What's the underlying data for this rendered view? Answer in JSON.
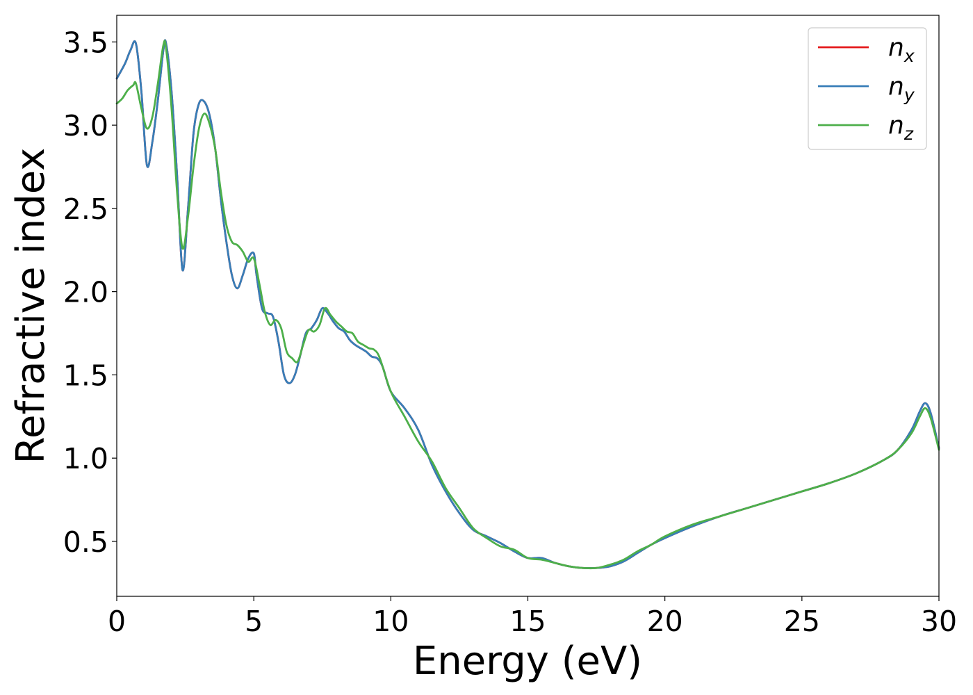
{
  "chart_data": {
    "type": "line",
    "xlabel": "Energy (eV)",
    "ylabel": "Refractive index",
    "xlim": [
      0,
      30
    ],
    "ylim": [
      0.17,
      3.66
    ],
    "xticks": [
      0,
      5,
      10,
      15,
      20,
      25,
      30
    ],
    "xtick_labels": [
      "0",
      "5",
      "10",
      "15",
      "20",
      "25",
      "30"
    ],
    "yticks": [
      0.5,
      1.0,
      1.5,
      2.0,
      2.5,
      3.0,
      3.5
    ],
    "ytick_labels": [
      "0.5",
      "1.0",
      "1.5",
      "2.0",
      "2.5",
      "3.0",
      "3.5"
    ],
    "grid": false,
    "legend_position": "top-right",
    "series": [
      {
        "name": "n",
        "subscript": "x",
        "color": "#e41a1c",
        "x": [
          0,
          0.3,
          0.5,
          0.7,
          0.9,
          1.1,
          1.3,
          1.5,
          1.7,
          1.8,
          2.0,
          2.2,
          2.4,
          2.6,
          2.8,
          3.0,
          3.2,
          3.4,
          3.6,
          3.8,
          4.0,
          4.2,
          4.4,
          4.6,
          4.8,
          5.0,
          5.1,
          5.3,
          5.5,
          5.7,
          5.9,
          6.1,
          6.3,
          6.5,
          6.7,
          6.9,
          7.1,
          7.3,
          7.5,
          7.7,
          7.9,
          8.1,
          8.3,
          8.5,
          8.7,
          8.9,
          9.1,
          9.3,
          9.5,
          9.7,
          10.0,
          10.5,
          11.0,
          11.5,
          12.0,
          12.5,
          13.0,
          13.5,
          14.0,
          14.5,
          15.0,
          15.5,
          16.0,
          16.5,
          17.0,
          17.5,
          18.0,
          18.5,
          19.0,
          19.5,
          20.0,
          21.0,
          22.0,
          23.0,
          24.0,
          25.0,
          26.0,
          27.0,
          28.0,
          28.5,
          29.0,
          29.3,
          29.5,
          29.7,
          30.0
        ],
        "y": [
          3.28,
          3.37,
          3.45,
          3.49,
          3.2,
          2.76,
          2.9,
          3.15,
          3.45,
          3.49,
          3.2,
          2.7,
          2.13,
          2.5,
          2.95,
          3.13,
          3.14,
          3.05,
          2.85,
          2.55,
          2.3,
          2.1,
          2.02,
          2.1,
          2.2,
          2.23,
          2.1,
          1.9,
          1.87,
          1.85,
          1.7,
          1.5,
          1.45,
          1.5,
          1.62,
          1.75,
          1.78,
          1.83,
          1.9,
          1.87,
          1.82,
          1.78,
          1.76,
          1.71,
          1.68,
          1.66,
          1.64,
          1.61,
          1.6,
          1.55,
          1.4,
          1.3,
          1.17,
          0.96,
          0.8,
          0.67,
          0.57,
          0.53,
          0.49,
          0.44,
          0.4,
          0.4,
          0.37,
          0.35,
          0.34,
          0.34,
          0.35,
          0.38,
          0.43,
          0.48,
          0.52,
          0.59,
          0.65,
          0.7,
          0.75,
          0.8,
          0.85,
          0.91,
          0.99,
          1.05,
          1.17,
          1.28,
          1.33,
          1.27,
          1.06
        ]
      },
      {
        "name": "n",
        "subscript": "y",
        "color": "#377eb8",
        "x": [
          0,
          0.3,
          0.5,
          0.7,
          0.9,
          1.1,
          1.3,
          1.5,
          1.7,
          1.8,
          2.0,
          2.2,
          2.4,
          2.6,
          2.8,
          3.0,
          3.2,
          3.4,
          3.6,
          3.8,
          4.0,
          4.2,
          4.4,
          4.6,
          4.8,
          5.0,
          5.1,
          5.3,
          5.5,
          5.7,
          5.9,
          6.1,
          6.3,
          6.5,
          6.7,
          6.9,
          7.1,
          7.3,
          7.5,
          7.7,
          7.9,
          8.1,
          8.3,
          8.5,
          8.7,
          8.9,
          9.1,
          9.3,
          9.5,
          9.7,
          10.0,
          10.5,
          11.0,
          11.5,
          12.0,
          12.5,
          13.0,
          13.5,
          14.0,
          14.5,
          15.0,
          15.5,
          16.0,
          16.5,
          17.0,
          17.5,
          18.0,
          18.5,
          19.0,
          19.5,
          20.0,
          21.0,
          22.0,
          23.0,
          24.0,
          25.0,
          26.0,
          27.0,
          28.0,
          28.5,
          29.0,
          29.3,
          29.5,
          29.7,
          30.0
        ],
        "y": [
          3.28,
          3.37,
          3.45,
          3.49,
          3.2,
          2.76,
          2.9,
          3.15,
          3.45,
          3.49,
          3.2,
          2.7,
          2.13,
          2.5,
          2.95,
          3.13,
          3.14,
          3.05,
          2.85,
          2.55,
          2.3,
          2.1,
          2.02,
          2.1,
          2.2,
          2.23,
          2.1,
          1.9,
          1.87,
          1.85,
          1.7,
          1.5,
          1.45,
          1.5,
          1.62,
          1.75,
          1.78,
          1.83,
          1.9,
          1.87,
          1.82,
          1.78,
          1.76,
          1.71,
          1.68,
          1.66,
          1.64,
          1.61,
          1.6,
          1.55,
          1.4,
          1.3,
          1.17,
          0.96,
          0.8,
          0.67,
          0.57,
          0.53,
          0.49,
          0.44,
          0.4,
          0.4,
          0.37,
          0.35,
          0.34,
          0.34,
          0.35,
          0.38,
          0.43,
          0.48,
          0.52,
          0.59,
          0.65,
          0.7,
          0.75,
          0.8,
          0.85,
          0.91,
          0.99,
          1.05,
          1.17,
          1.28,
          1.33,
          1.27,
          1.06
        ]
      },
      {
        "name": "n",
        "subscript": "z",
        "color": "#4daf4a",
        "x": [
          0,
          0.2,
          0.4,
          0.6,
          0.7,
          0.9,
          1.1,
          1.3,
          1.5,
          1.7,
          1.8,
          2.0,
          2.2,
          2.4,
          2.6,
          2.8,
          3.0,
          3.2,
          3.4,
          3.6,
          3.8,
          4.0,
          4.2,
          4.4,
          4.6,
          4.8,
          5.0,
          5.2,
          5.4,
          5.6,
          5.8,
          6.0,
          6.2,
          6.4,
          6.6,
          6.8,
          7.0,
          7.2,
          7.4,
          7.6,
          7.8,
          8.0,
          8.2,
          8.4,
          8.6,
          8.8,
          9.0,
          9.2,
          9.4,
          9.6,
          10.0,
          10.5,
          11.0,
          11.5,
          12.0,
          12.5,
          13.0,
          13.5,
          14.0,
          14.5,
          15.0,
          15.5,
          16.0,
          16.5,
          17.0,
          17.5,
          18.0,
          18.5,
          19.0,
          19.5,
          20.0,
          21.0,
          22.0,
          23.0,
          24.0,
          25.0,
          26.0,
          27.0,
          28.0,
          28.5,
          29.0,
          29.3,
          29.5,
          29.7,
          30.0
        ],
        "y": [
          3.13,
          3.16,
          3.21,
          3.24,
          3.25,
          3.1,
          2.98,
          3.05,
          3.25,
          3.48,
          3.46,
          3.1,
          2.6,
          2.26,
          2.45,
          2.75,
          2.98,
          3.07,
          3.0,
          2.85,
          2.6,
          2.4,
          2.3,
          2.28,
          2.24,
          2.18,
          2.2,
          2.05,
          1.88,
          1.8,
          1.83,
          1.78,
          1.64,
          1.6,
          1.58,
          1.68,
          1.77,
          1.76,
          1.8,
          1.9,
          1.86,
          1.82,
          1.79,
          1.76,
          1.75,
          1.7,
          1.68,
          1.66,
          1.65,
          1.6,
          1.4,
          1.25,
          1.1,
          0.98,
          0.82,
          0.7,
          0.58,
          0.52,
          0.47,
          0.45,
          0.4,
          0.39,
          0.37,
          0.35,
          0.34,
          0.34,
          0.36,
          0.39,
          0.44,
          0.48,
          0.53,
          0.6,
          0.65,
          0.7,
          0.75,
          0.8,
          0.85,
          0.91,
          0.99,
          1.05,
          1.15,
          1.25,
          1.3,
          1.24,
          1.05
        ]
      }
    ]
  }
}
